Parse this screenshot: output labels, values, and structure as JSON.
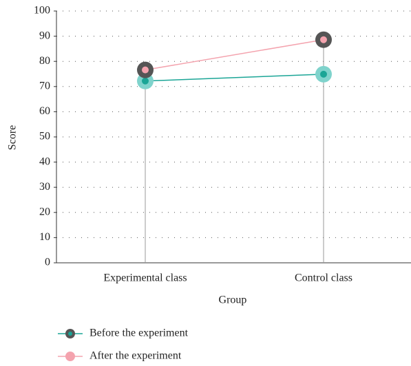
{
  "chart_data": {
    "type": "line",
    "x_label": "Group",
    "y_label": "Score",
    "categories": [
      "Experimental class",
      "Control class"
    ],
    "series": [
      {
        "name": "Before the experiment",
        "color": "#1aa596",
        "marker_color": "#7fd3cc",
        "legend_marker_color": "#555555",
        "values": [
          72.2,
          74.9
        ]
      },
      {
        "name": "After the experiment",
        "color": "#f4a3ae",
        "marker_color": "#555555",
        "legend_marker_color": "#f4a3ae",
        "values": [
          76.6,
          88.6
        ]
      }
    ],
    "ylim": [
      0,
      100
    ],
    "yticks": [
      0,
      10,
      20,
      30,
      40,
      50,
      60,
      70,
      80,
      90,
      100
    ],
    "grid": true,
    "legend": "bottom"
  }
}
